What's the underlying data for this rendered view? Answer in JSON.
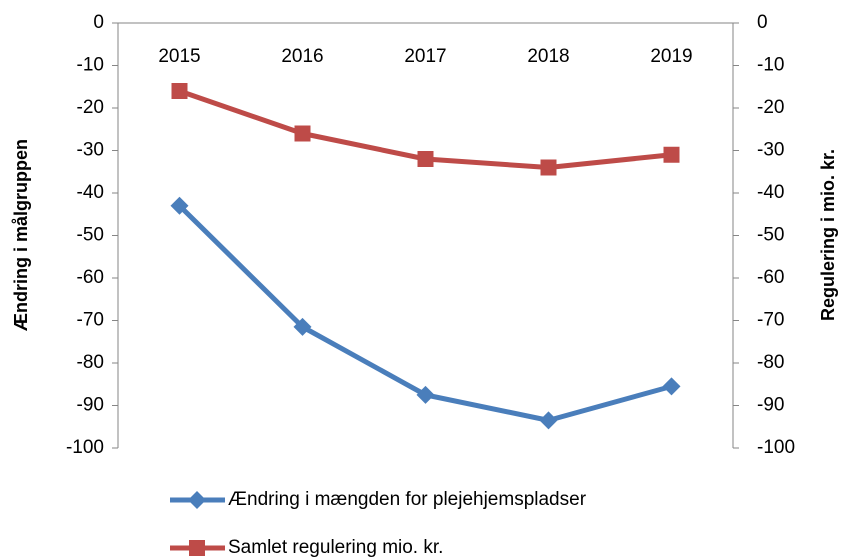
{
  "chart_data": {
    "type": "line",
    "categories": [
      "2015",
      "2016",
      "2017",
      "2018",
      "2019"
    ],
    "ylabel": "Ændring i målgruppen",
    "y2label": "Regulering i mio. kr.",
    "ylim": [
      -100,
      0
    ],
    "yticks": [
      0,
      -10,
      -20,
      -30,
      -40,
      -50,
      -60,
      -70,
      -80,
      -90,
      -100
    ],
    "y2lim": [
      -100,
      0
    ],
    "y2ticks": [
      0,
      -10,
      -20,
      -30,
      -40,
      -50,
      -60,
      -70,
      -80,
      -90,
      -100
    ],
    "series": [
      {
        "name": "Ændring i mængden for plejehjemspladser",
        "color": "#4a7ebb",
        "marker": "diamond",
        "values": [
          -43,
          -71.5,
          -87.5,
          -93.5,
          -85.5
        ]
      },
      {
        "name": "Samlet regulering mio. kr.",
        "color": "#be4b48",
        "marker": "square",
        "axis": "y2",
        "values": [
          -16,
          -26,
          -32,
          -34,
          -31
        ]
      }
    ]
  }
}
